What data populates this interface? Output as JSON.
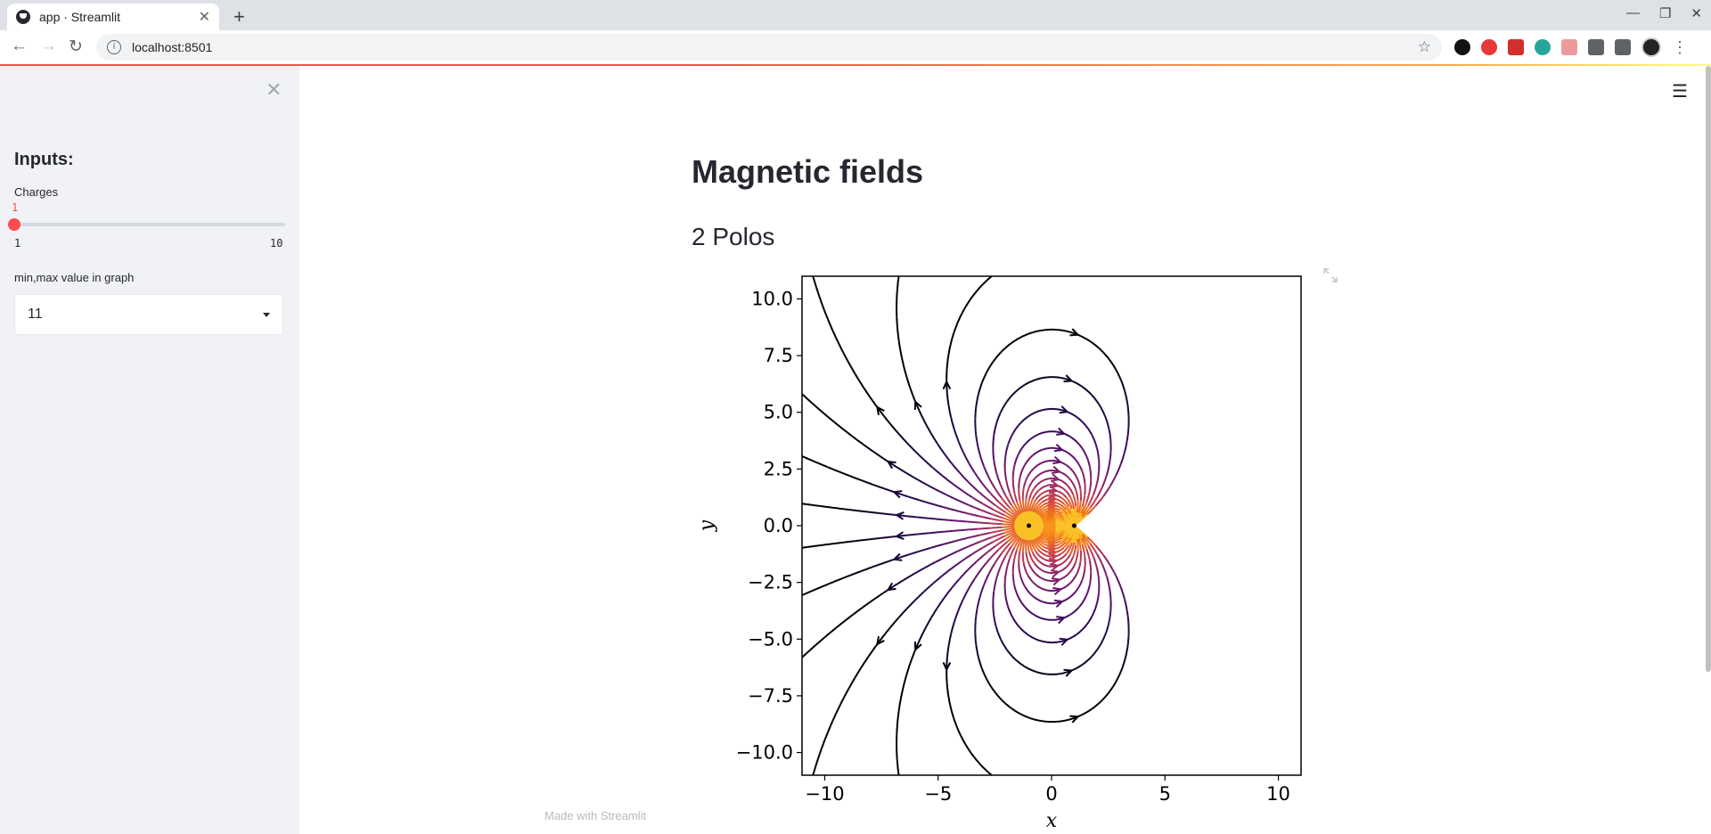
{
  "browser": {
    "tab_title": "app · Streamlit",
    "url": "localhost:8501"
  },
  "sidebar": {
    "heading": "Inputs:",
    "charges_label": "Charges",
    "slider": {
      "value": "1",
      "min": "1",
      "max": "10"
    },
    "minmax_label": "min,max value in graph",
    "minmax_selected": "11"
  },
  "main": {
    "title": "Magnetic fields",
    "subtitle": "2 Polos",
    "footer": "Made with Streamlit"
  },
  "chart_data": {
    "type": "streamplot",
    "xlabel": "x",
    "ylabel": "y",
    "xlim": [
      -11,
      11
    ],
    "ylim": [
      -11,
      11
    ],
    "xticks": [
      "−10",
      "−5",
      "0",
      "5",
      "10"
    ],
    "yticks": [
      "10.0",
      "7.5",
      "5.0",
      "2.5",
      "0.0",
      "−2.5",
      "−5.0",
      "−7.5",
      "−10.0"
    ],
    "xtick_values": [
      -10,
      -5,
      0,
      5,
      10
    ],
    "ytick_values": [
      10,
      7.5,
      5,
      2.5,
      0,
      -2.5,
      -5,
      -7.5,
      -10
    ],
    "charges": [
      {
        "x": -1,
        "y": 0,
        "q": 1
      },
      {
        "x": 1,
        "y": 0,
        "q": -1
      }
    ],
    "colormap": "inferno"
  }
}
